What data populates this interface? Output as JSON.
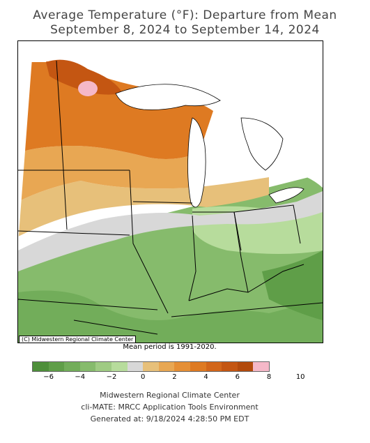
{
  "title_line1": "Average Temperature (°F): Departure from Mean",
  "title_line2": "September 8, 2024 to September 14, 2024",
  "copyright": "(C) Midwestern Regional Climate Center",
  "mean_period": "Mean period is 1991-2020.",
  "legend": {
    "colors": [
      "#4e8f3a",
      "#5f9e48",
      "#72ad5a",
      "#86bb6c",
      "#9fcb83",
      "#b7dc9c",
      "#d8d8d8",
      "#e7c07a",
      "#e8a753",
      "#e58f36",
      "#de7a22",
      "#d2661a",
      "#c45612",
      "#b24a0c",
      "#f5b8c8"
    ],
    "ticks": [
      "−6",
      "−4",
      "−2",
      "0",
      "2",
      "4",
      "6",
      "8",
      "10"
    ]
  },
  "footer": {
    "line1": "Midwestern Regional Climate Center",
    "line2": "cli-MATE: MRCC Application Tools Environment",
    "line3": "Generated at: 9/18/2024 4:28:50 PM EDT"
  }
}
